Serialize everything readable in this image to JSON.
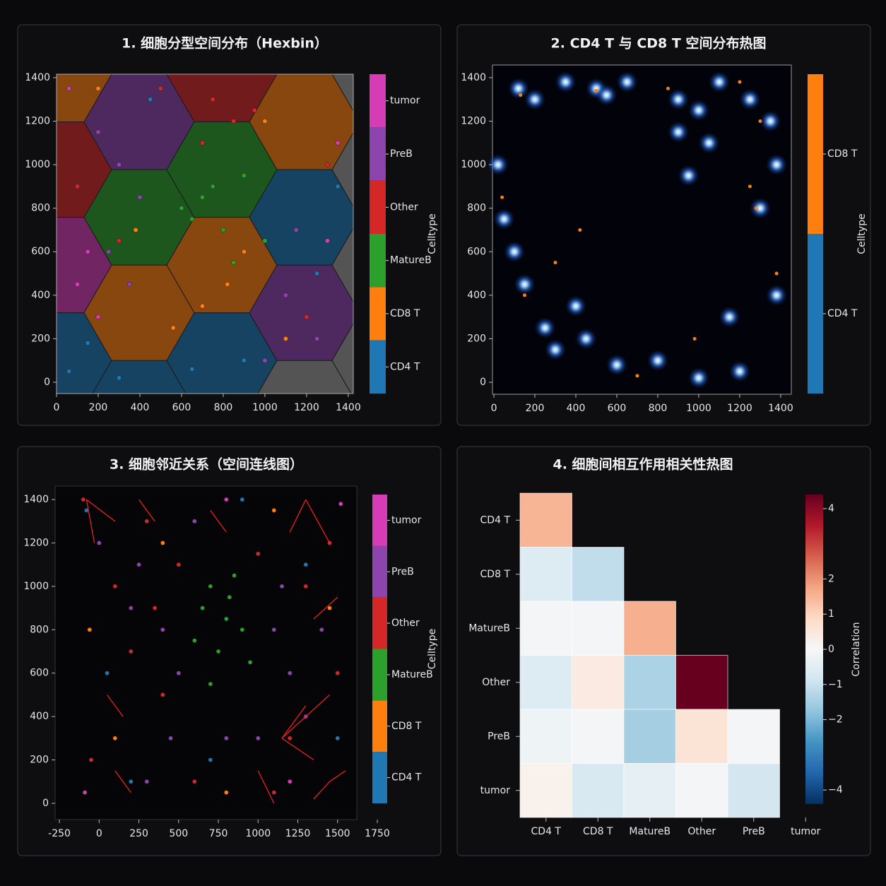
{
  "chart_data": [
    {
      "type": "hexbin",
      "title": "1. 细胞分型空间分布（Hexbin）",
      "legend_title": "Celltype",
      "xlim": [
        0,
        1424
      ],
      "ylim": [
        -52,
        1416
      ],
      "xticks": [
        0,
        200,
        400,
        600,
        800,
        1000,
        1200,
        1400
      ],
      "yticks": [
        0,
        200,
        400,
        600,
        800,
        1000,
        1200,
        1400
      ],
      "series": [
        {
          "name": "CD4 T",
          "color": "#1f77b4",
          "x": [
            60,
            150,
            300,
            650,
            900,
            1250,
            1350,
            450
          ],
          "y": [
            50,
            180,
            20,
            60,
            100,
            500,
            900,
            1300
          ]
        },
        {
          "name": "CD8 T",
          "color": "#ff7f0e",
          "x": [
            700,
            820,
            560,
            900,
            1100,
            380,
            1000,
            200
          ],
          "y": [
            350,
            450,
            250,
            600,
            200,
            700,
            1200,
            1350
          ]
        },
        {
          "name": "MatureB",
          "color": "#2ca02c",
          "x": [
            700,
            800,
            750,
            650,
            900,
            850,
            600,
            1000
          ],
          "y": [
            850,
            700,
            900,
            750,
            950,
            550,
            800,
            650
          ]
        },
        {
          "name": "Other",
          "color": "#d62728",
          "x": [
            750,
            850,
            700,
            100,
            1300,
            500,
            950,
            1200,
            300
          ],
          "y": [
            1300,
            1200,
            1100,
            900,
            1000,
            1350,
            1250,
            300,
            650
          ]
        },
        {
          "name": "PreB",
          "color": "#8e44ad",
          "x": [
            300,
            400,
            250,
            1100,
            1250,
            350,
            1000,
            1150,
            200
          ],
          "y": [
            1000,
            850,
            600,
            400,
            200,
            450,
            100,
            700,
            1150
          ]
        },
        {
          "name": "tumor",
          "color": "#d63cb5",
          "x": [
            100,
            200,
            1300,
            60,
            1350,
            150
          ],
          "y": [
            450,
            300,
            650,
            1350,
            1100,
            600
          ]
        }
      ]
    },
    {
      "type": "density",
      "title": "2. CD4 T 与 CD8 T 空间分布热图",
      "legend_title": "Celltype",
      "xlim": [
        -7,
        1452
      ],
      "ylim": [
        -55,
        1458
      ],
      "xticks": [
        0,
        200,
        400,
        600,
        800,
        1000,
        1200,
        1400
      ],
      "yticks": [
        0,
        200,
        400,
        600,
        800,
        1000,
        1200,
        1400
      ],
      "series": [
        {
          "name": "CD4 T",
          "color": "#1f77b4",
          "x": [
            120,
            200,
            350,
            500,
            550,
            650,
            900,
            1000,
            1100,
            1250,
            1350,
            1380,
            1300,
            1050,
            950,
            20,
            50,
            100,
            150,
            400,
            450,
            300,
            800,
            1200,
            1000,
            600,
            250,
            1380,
            1150,
            900
          ],
          "y": [
            1350,
            1300,
            1380,
            1350,
            1320,
            1380,
            1300,
            1250,
            1380,
            1300,
            1200,
            1000,
            800,
            1100,
            950,
            1000,
            750,
            600,
            450,
            350,
            200,
            150,
            100,
            50,
            20,
            80,
            250,
            400,
            300,
            1150
          ]
        },
        {
          "name": "CD8 T",
          "color": "#ff7f0e",
          "x": [
            130,
            500,
            850,
            1300,
            1250,
            1280,
            420,
            150,
            980,
            700,
            1380,
            40,
            300,
            1200
          ],
          "y": [
            1320,
            1340,
            1350,
            1200,
            900,
            800,
            700,
            400,
            200,
            30,
            500,
            850,
            550,
            1380
          ]
        }
      ]
    },
    {
      "type": "network",
      "title": "3. 细胞邻近关系（空间连线图）",
      "legend_title": "Celltype",
      "xlim": [
        -277,
        1621
      ],
      "ylim": [
        -75,
        1462
      ],
      "xticks": [
        -250,
        0,
        250,
        500,
        750,
        1000,
        1250,
        1500,
        1750
      ],
      "yticks": [
        0,
        200,
        400,
        600,
        800,
        1000,
        1200,
        1400
      ],
      "series": [
        {
          "name": "CD4 T",
          "color": "#1f77b4",
          "x": [
            -80,
            200,
            900,
            1500,
            50,
            1300,
            700
          ],
          "y": [
            1350,
            100,
            1400,
            300,
            600,
            1100,
            200
          ]
        },
        {
          "name": "CD8 T",
          "color": "#ff7f0e",
          "x": [
            -60,
            400,
            1100,
            1450,
            100,
            800
          ],
          "y": [
            800,
            1200,
            1350,
            900,
            300,
            50
          ]
        },
        {
          "name": "MatureB",
          "color": "#2ca02c",
          "x": [
            650,
            700,
            800,
            750,
            900,
            850,
            600,
            950,
            700,
            820
          ],
          "y": [
            900,
            1000,
            850,
            700,
            800,
            1050,
            750,
            650,
            550,
            950
          ]
        },
        {
          "name": "Other",
          "color": "#d62728",
          "x": [
            -100,
            100,
            300,
            500,
            1000,
            1300,
            1450,
            200,
            400,
            1200,
            -50,
            1500,
            600,
            1100,
            350
          ],
          "y": [
            1400,
            1000,
            1300,
            1100,
            1150,
            1000,
            1200,
            700,
            500,
            300,
            200,
            600,
            100,
            50,
            900
          ]
        },
        {
          "name": "PreB",
          "color": "#8e44ad",
          "x": [
            0,
            200,
            400,
            500,
            450,
            1100,
            1200,
            1300,
            1000,
            300,
            600,
            1150,
            800,
            250,
            1400
          ],
          "y": [
            1200,
            900,
            800,
            600,
            300,
            800,
            600,
            400,
            300,
            100,
            1300,
            1000,
            300,
            1100,
            800
          ]
        },
        {
          "name": "tumor",
          "color": "#d63cb5",
          "x": [
            -90,
            1520,
            800,
            1200
          ],
          "y": [
            50,
            1380,
            1400,
            100
          ]
        }
      ],
      "edge_color": "#ff2020",
      "edges": {
        "x0": [
          -80,
          -80,
          1300,
          1300,
          1150,
          1150,
          1150,
          1450,
          1450,
          1000,
          100,
          50,
          1350,
          700,
          250
        ],
        "y0": [
          1400,
          1400,
          1400,
          1400,
          300,
          300,
          300,
          100,
          100,
          150,
          150,
          500,
          850,
          1350,
          1400
        ],
        "x1": [
          100,
          -30,
          1450,
          1200,
          1450,
          1350,
          1300,
          1350,
          1550,
          1100,
          200,
          150,
          1500,
          800,
          350
        ],
        "y1": [
          1300,
          1200,
          1200,
          1250,
          500,
          200,
          450,
          20,
          150,
          0,
          50,
          400,
          950,
          1250,
          1300
        ]
      }
    },
    {
      "type": "heatmap",
      "title": "4. 细胞间相互作用相关性热图",
      "colorbar_label": "Correlation",
      "rows": [
        "CD4 T",
        "CD8 T",
        "MatureB",
        "Other",
        "PreB",
        "tumor"
      ],
      "columns": [
        "CD4 T",
        "CD8 T",
        "MatureB",
        "Other",
        "PreB",
        "tumor"
      ],
      "values": [
        [
          1.5,
          null,
          null,
          null,
          null,
          null
        ],
        [
          -0.6,
          -1.1,
          null,
          null,
          null,
          null
        ],
        [
          -0.1,
          -0.1,
          1.6,
          null,
          null,
          null
        ],
        [
          -0.6,
          0.4,
          -1.4,
          4.6,
          null,
          null
        ],
        [
          -0.2,
          -0.1,
          -1.5,
          0.6,
          -0.1,
          null
        ],
        [
          0.2,
          -0.7,
          -0.4,
          -0.1,
          -0.8,
          null
        ]
      ],
      "clim": [
        -4.4,
        4.4
      ],
      "cticks": [
        {
          "value": -4,
          "label": "−4"
        },
        {
          "value": -2,
          "label": "−2"
        },
        {
          "value": -1,
          "label": "−1"
        },
        0,
        1,
        2,
        4
      ],
      "colormap": [
        "#053061",
        "#2166ac",
        "#4393c3",
        "#92c5de",
        "#d1e5f0",
        "#f7f7f7",
        "#fddbc7",
        "#f4a582",
        "#d6604d",
        "#b2182b",
        "#67001f"
      ]
    }
  ]
}
